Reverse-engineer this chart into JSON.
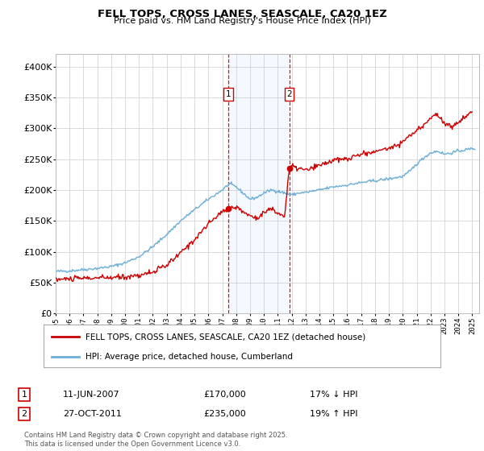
{
  "title": "FELL TOPS, CROSS LANES, SEASCALE, CA20 1EZ",
  "subtitle": "Price paid vs. HM Land Registry's House Price Index (HPI)",
  "line1_label": "FELL TOPS, CROSS LANES, SEASCALE, CA20 1EZ (detached house)",
  "line2_label": "HPI: Average price, detached house, Cumberland",
  "line1_color": "#cc0000",
  "line2_color": "#6baed6",
  "shade_color": "#ddeeff",
  "vline_color": "#cc0000",
  "event1_x": 2007.44,
  "event2_x": 2011.82,
  "event1_label": "1",
  "event2_label": "2",
  "event1_y": 170000,
  "event2_y": 235000,
  "event1_date": "11-JUN-2007",
  "event1_price": "£170,000",
  "event1_hpi": "17% ↓ HPI",
  "event2_date": "27-OCT-2011",
  "event2_price": "£235,000",
  "event2_hpi": "19% ↑ HPI",
  "ylim": [
    0,
    420000
  ],
  "yticks": [
    0,
    50000,
    100000,
    150000,
    200000,
    250000,
    300000,
    350000,
    400000
  ],
  "xlim": [
    1995,
    2025.5
  ],
  "footer": "Contains HM Land Registry data © Crown copyright and database right 2025.\nThis data is licensed under the Open Government Licence v3.0.",
  "background_color": "#ffffff",
  "hpi_keypoints": [
    [
      1995.0,
      68000
    ],
    [
      1996.0,
      69000
    ],
    [
      1997.0,
      71000
    ],
    [
      1998.0,
      73000
    ],
    [
      1999.0,
      76000
    ],
    [
      2000.0,
      82000
    ],
    [
      2001.0,
      92000
    ],
    [
      2002.0,
      108000
    ],
    [
      2003.0,
      128000
    ],
    [
      2004.0,
      150000
    ],
    [
      2005.0,
      168000
    ],
    [
      2006.0,
      185000
    ],
    [
      2007.0,
      200000
    ],
    [
      2007.5,
      210000
    ],
    [
      2008.0,
      205000
    ],
    [
      2008.5,
      195000
    ],
    [
      2009.0,
      185000
    ],
    [
      2009.5,
      188000
    ],
    [
      2010.0,
      195000
    ],
    [
      2010.5,
      200000
    ],
    [
      2011.0,
      198000
    ],
    [
      2011.5,
      195000
    ],
    [
      2012.0,
      192000
    ],
    [
      2012.5,
      195000
    ],
    [
      2013.0,
      196000
    ],
    [
      2014.0,
      200000
    ],
    [
      2015.0,
      205000
    ],
    [
      2016.0,
      208000
    ],
    [
      2017.0,
      212000
    ],
    [
      2018.0,
      215000
    ],
    [
      2019.0,
      218000
    ],
    [
      2020.0,
      222000
    ],
    [
      2020.5,
      230000
    ],
    [
      2021.0,
      242000
    ],
    [
      2021.5,
      252000
    ],
    [
      2022.0,
      260000
    ],
    [
      2022.5,
      263000
    ],
    [
      2023.0,
      258000
    ],
    [
      2023.5,
      260000
    ],
    [
      2024.0,
      263000
    ],
    [
      2024.5,
      265000
    ],
    [
      2025.0,
      267000
    ]
  ],
  "fell_keypoints": [
    [
      1995.0,
      55000
    ],
    [
      1996.0,
      56000
    ],
    [
      1997.0,
      57000
    ],
    [
      1998.0,
      57500
    ],
    [
      1999.0,
      58000
    ],
    [
      2000.0,
      59000
    ],
    [
      2001.0,
      62000
    ],
    [
      2002.0,
      67000
    ],
    [
      2003.0,
      78000
    ],
    [
      2004.0,
      98000
    ],
    [
      2005.0,
      120000
    ],
    [
      2006.0,
      145000
    ],
    [
      2007.0,
      165000
    ],
    [
      2007.44,
      170000
    ],
    [
      2008.0,
      172000
    ],
    [
      2009.0,
      158000
    ],
    [
      2009.5,
      155000
    ],
    [
      2010.0,
      163000
    ],
    [
      2010.5,
      170000
    ],
    [
      2011.0,
      162000
    ],
    [
      2011.5,
      158000
    ],
    [
      2011.82,
      235000
    ],
    [
      2012.0,
      238000
    ],
    [
      2012.5,
      235000
    ],
    [
      2013.0,
      232000
    ],
    [
      2013.5,
      235000
    ],
    [
      2014.0,
      240000
    ],
    [
      2015.0,
      248000
    ],
    [
      2016.0,
      250000
    ],
    [
      2017.0,
      258000
    ],
    [
      2018.0,
      262000
    ],
    [
      2019.0,
      268000
    ],
    [
      2019.5,
      272000
    ],
    [
      2020.0,
      278000
    ],
    [
      2020.5,
      288000
    ],
    [
      2021.0,
      295000
    ],
    [
      2021.5,
      305000
    ],
    [
      2022.0,
      318000
    ],
    [
      2022.5,
      322000
    ],
    [
      2023.0,
      308000
    ],
    [
      2023.5,
      302000
    ],
    [
      2024.0,
      310000
    ],
    [
      2024.5,
      318000
    ],
    [
      2025.0,
      328000
    ]
  ]
}
